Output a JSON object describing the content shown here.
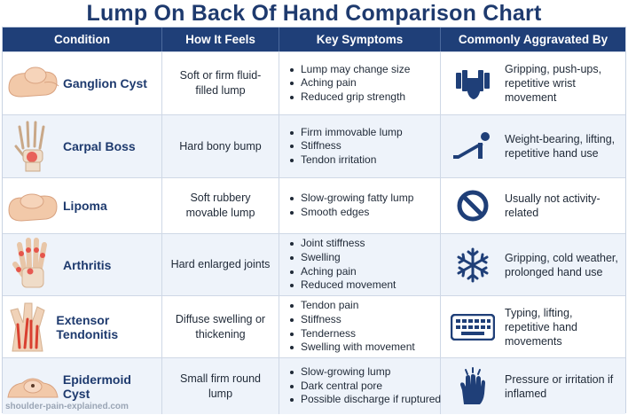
{
  "title": "Lump On Back Of Hand Comparison Chart",
  "headers": [
    "Condition",
    "How It Feels",
    "Key Symptoms",
    "Commonly Aggravated By"
  ],
  "rows": [
    {
      "name": "Ganglion Cyst",
      "feel": "Soft or firm fluid-filled lump",
      "symptoms": [
        "Lump may change size",
        "Aching pain",
        "Reduced grip strength"
      ],
      "aggravated": "Gripping, push-ups, repetitive wrist movement",
      "illustration": "hand-lump-illustration",
      "icon": "dumbbell-grip-icon"
    },
    {
      "name": "Carpal Boss",
      "feel": "Hard bony bump",
      "symptoms": [
        "Firm immovable lump",
        "Stiffness",
        "Tendon irritation"
      ],
      "aggravated": "Weight-bearing, lifting, repetitive hand use",
      "illustration": "hand-bones-illustration",
      "icon": "push-up-icon"
    },
    {
      "name": "Lipoma",
      "feel": "Soft rubbery movable lump",
      "symptoms": [
        "Slow-growing fatty lump",
        "Smooth edges"
      ],
      "aggravated": "Usually not activity-related",
      "illustration": "hand-lump-illustration",
      "icon": "prohibited-icon"
    },
    {
      "name": "Arthritis",
      "feel": "Hard enlarged joints",
      "symptoms": [
        "Joint stiffness",
        "Swelling",
        "Aching pain",
        "Reduced movement"
      ],
      "aggravated": "Gripping, cold weather, prolonged hand use",
      "illustration": "inflamed-joints-illustration",
      "icon": "snowflake-icon"
    },
    {
      "name": "Extensor Tendonitis",
      "feel": "Diffuse swelling or thickening",
      "symptoms": [
        "Tendon pain",
        "Stiffness",
        "Tenderness",
        "Swelling with movement"
      ],
      "aggravated": "Typing, lifting, repetitive hand movements",
      "illustration": "tendons-illustration",
      "icon": "keyboard-icon"
    },
    {
      "name": "Epidermoid Cyst",
      "feel": "Small firm round lump",
      "symptoms": [
        "Slow-growing lump",
        "Dark central pore",
        "Possible discharge if ruptured"
      ],
      "aggravated": "Pressure or irritation if inflamed",
      "illustration": "skin-cyst-illustration",
      "icon": "pressing-hand-icon"
    }
  ],
  "footer": "shoulder-pain-explained.com",
  "colors": {
    "header_bg": "#1f3f78",
    "title": "#1e3a6e",
    "icon": "#1f3f78",
    "alt_row": "#eef3fa"
  }
}
